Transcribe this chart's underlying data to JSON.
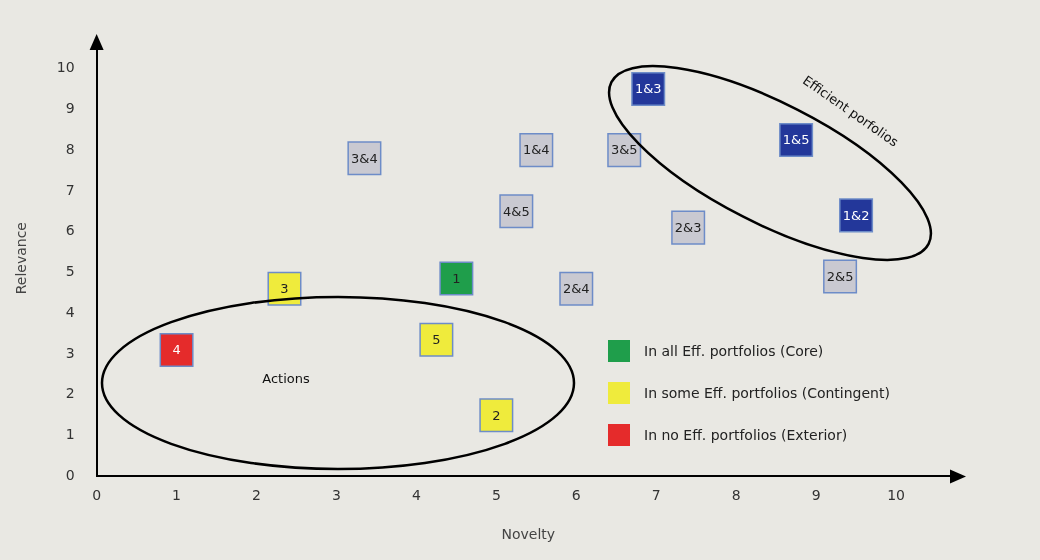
{
  "chart_data": {
    "type": "scatter",
    "xlabel": "Novelty",
    "ylabel": "Relevance",
    "xlim": [
      0,
      10.8
    ],
    "ylim": [
      0,
      10.7
    ],
    "xticks": [
      0,
      1,
      2,
      3,
      4,
      5,
      6,
      7,
      8,
      9,
      10
    ],
    "yticks": [
      0,
      1,
      2,
      3,
      4,
      5,
      6,
      7,
      8,
      9,
      10
    ],
    "grid": false,
    "legend": "bottom right",
    "marker": "square",
    "annotations": [
      "Actions",
      "Efficient porfolios",
      {
        "text": "3&4",
        "x": 3.35,
        "y": 7.8
      },
      {
        "text": "1&4",
        "x": 5.5,
        "y": 8.0
      },
      {
        "text": "3&5",
        "x": 6.6,
        "y": 8.0
      },
      {
        "text": "4&5",
        "x": 5.25,
        "y": 6.5
      },
      {
        "text": "2&3",
        "x": 7.4,
        "y": 6.1
      },
      {
        "text": "2&4",
        "x": 6.0,
        "y": 4.6
      },
      {
        "text": "2&5",
        "x": 9.3,
        "y": 4.9
      },
      {
        "text": "1&3",
        "x": 6.9,
        "y": 9.5
      },
      {
        "text": "1&5",
        "x": 8.75,
        "y": 8.25
      },
      {
        "text": "1&2",
        "x": 9.5,
        "y": 6.4
      },
      {
        "text": "1",
        "x": 4.5,
        "y": 4.85
      },
      {
        "text": "3",
        "x": 2.35,
        "y": 4.6
      },
      {
        "text": "5",
        "x": 4.25,
        "y": 3.35
      },
      {
        "text": "2",
        "x": 5.0,
        "y": 1.5
      },
      {
        "text": "4",
        "x": 1.0,
        "y": 3.1
      }
    ],
    "series": [
      {
        "color": "#c9c9d1",
        "x": [
          3.35,
          5.5,
          6.6,
          5.25,
          7.4,
          6.0,
          9.3
        ],
        "values": [
          7.8,
          8.0,
          8.0,
          6.5,
          6.1,
          4.6,
          4.9
        ]
      },
      {
        "color": "#23379a",
        "x": [
          6.9,
          8.75,
          9.5
        ],
        "values": [
          9.5,
          8.25,
          6.4
        ]
      },
      {
        "name": "In all Eff. portfolios (Core)",
        "color": "#1f9e4b",
        "x": [
          4.5
        ],
        "values": [
          4.85
        ]
      },
      {
        "name": "In some Eff. portfolios (Contingent)",
        "color": "#efeb3c",
        "x": [
          2.35,
          4.25,
          5.0
        ],
        "values": [
          4.6,
          3.35,
          1.5
        ]
      },
      {
        "name": "In no Eff. portfolios (Exterior)",
        "color": "#e52b2b",
        "x": [
          1.0
        ],
        "values": [
          3.1
        ]
      }
    ]
  }
}
